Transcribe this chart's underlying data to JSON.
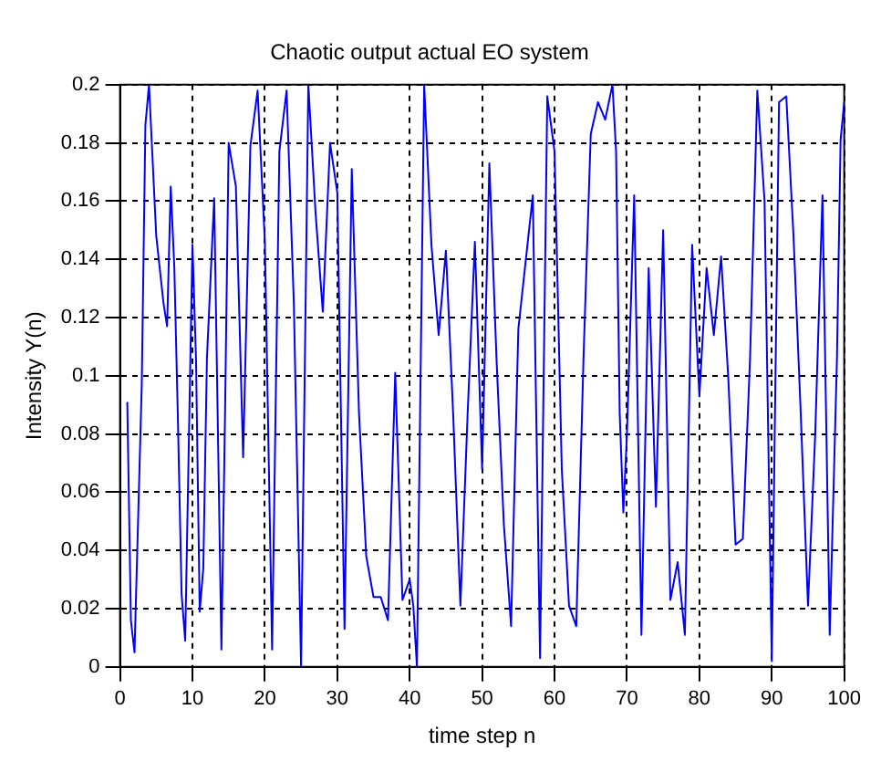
{
  "chart_data": {
    "type": "line",
    "title": "Chaotic output actual EO system",
    "xlabel": "time step n",
    "ylabel": "Intensity Y(n)",
    "x": [
      1,
      1.5,
      2,
      3,
      3.5,
      4,
      5,
      6,
      6.5,
      7,
      7.5,
      8,
      8.5,
      9,
      10,
      10.5,
      11,
      11.5,
      12,
      13,
      14,
      14.5,
      15,
      16,
      17,
      18,
      19,
      20,
      21,
      22,
      23,
      24,
      25,
      26,
      27,
      28,
      29,
      30,
      31,
      32,
      33,
      34,
      35,
      36,
      37,
      38,
      39,
      40,
      40.5,
      41,
      42,
      43,
      44,
      45,
      46,
      47,
      48,
      49,
      50,
      51,
      52,
      53,
      54,
      55,
      56,
      57,
      58,
      59,
      60,
      61,
      62,
      63,
      64,
      65,
      66,
      67,
      68,
      68.5,
      69,
      69.5,
      70,
      71,
      72,
      73,
      74,
      75,
      76,
      77,
      78,
      79,
      80,
      81,
      82,
      83,
      84,
      85,
      86,
      87,
      88,
      89,
      90,
      91,
      92,
      93,
      94,
      95,
      96,
      97,
      98,
      99,
      99.5,
      100
    ],
    "series": [
      {
        "color": "#0000ff",
        "values": [
          0.091,
          0.016,
          0.005,
          0.097,
          0.186,
          0.2,
          0.148,
          0.125,
          0.117,
          0.165,
          0.137,
          0.084,
          0.025,
          0.009,
          0.145,
          0.105,
          0.019,
          0.034,
          0.106,
          0.161,
          0.006,
          0.087,
          0.18,
          0.165,
          0.072,
          0.179,
          0.198,
          0.146,
          0.006,
          0.177,
          0.198,
          0.125,
          0,
          0.2,
          0.156,
          0.122,
          0.18,
          0.163,
          0.013,
          0.171,
          0.087,
          0.038,
          0.024,
          0.024,
          0.016,
          0.101,
          0.023,
          0.03,
          0.021,
          0,
          0.2,
          0.145,
          0.114,
          0.143,
          0.087,
          0.021,
          0.087,
          0.146,
          0.068,
          0.173,
          0.105,
          0.049,
          0.014,
          0.116,
          0.139,
          0.162,
          0.003,
          0.196,
          0.177,
          0.068,
          0.021,
          0.014,
          0.106,
          0.183,
          0.194,
          0.188,
          0.2,
          0.177,
          0.087,
          0.053,
          0.08,
          0.162,
          0.011,
          0.137,
          0.055,
          0.15,
          0.023,
          0.036,
          0.011,
          0.145,
          0.093,
          0.137,
          0.114,
          0.141,
          0.099,
          0.042,
          0.044,
          0.106,
          0.198,
          0.16,
          0.002,
          0.194,
          0.196,
          0.148,
          0.087,
          0.021,
          0.08,
          0.162,
          0.011,
          0.106,
          0.181,
          0.194
        ]
      }
    ],
    "xlim": [
      0,
      100
    ],
    "xticks": [
      0,
      10,
      20,
      30,
      40,
      50,
      60,
      70,
      80,
      90,
      100
    ],
    "ylim": [
      0,
      0.2
    ],
    "yticks": [
      0,
      0.02,
      0.04,
      0.06,
      0.08,
      0.1,
      0.12,
      0.14,
      0.16,
      0.18,
      0.2
    ],
    "grid": true,
    "legend": false,
    "marker": "none",
    "line_style": "solid"
  }
}
